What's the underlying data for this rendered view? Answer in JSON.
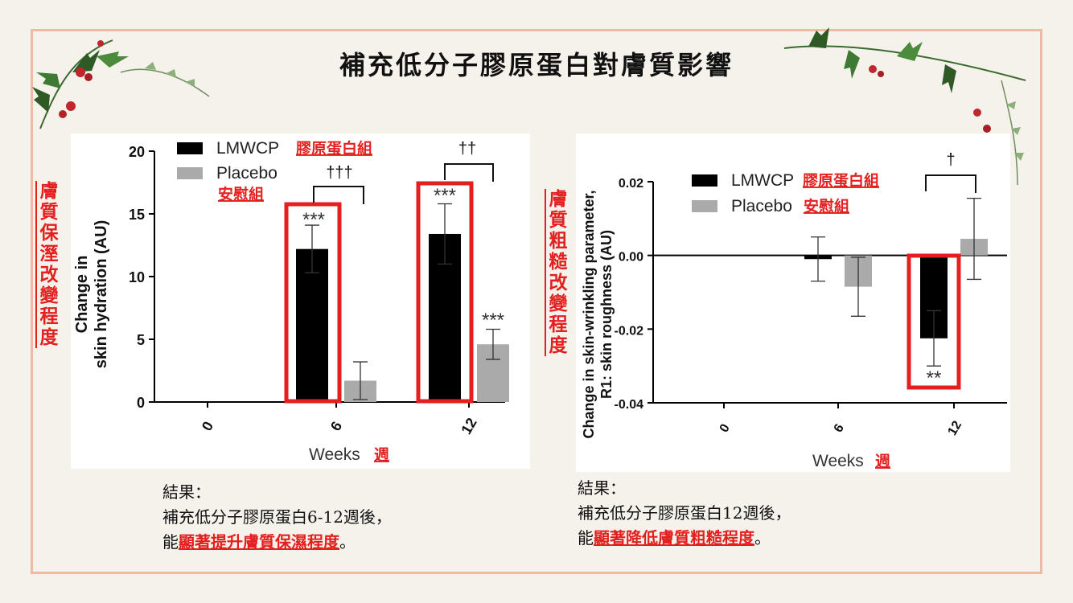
{
  "slide": {
    "title": "補充低分子膠原蛋白對膚質影響"
  },
  "colors": {
    "accent_red": "#e41f1f",
    "lmwcp": "#000000",
    "placebo": "#aaaaaa",
    "frame": "#f2b9a2"
  },
  "left_side_label": [
    "膚",
    "質",
    "保",
    "溼",
    "改",
    "變",
    "程",
    "度"
  ],
  "right_side_label": [
    "膚",
    "質",
    "粗",
    "糙",
    "改",
    "變",
    "程",
    "度"
  ],
  "chart_data": [
    {
      "type": "bar",
      "title": "",
      "ylabel_lines": [
        "Change in",
        "skin hydration (AU)"
      ],
      "xlabel": "Weeks",
      "xlabel_zh": "週",
      "categories": [
        "0",
        "6",
        "12"
      ],
      "ylim": [
        0,
        20
      ],
      "yticks": [
        "0",
        "5",
        "10",
        "15",
        "20"
      ],
      "series": [
        {
          "name": "LMWCP",
          "name_zh": "膠原蛋白組",
          "values": [
            null,
            12.2,
            13.4
          ],
          "errors": [
            null,
            1.9,
            2.4
          ]
        },
        {
          "name": "Placebo",
          "name_zh": "安慰組",
          "values": [
            null,
            1.7,
            4.6
          ],
          "errors": [
            null,
            1.5,
            1.2
          ]
        }
      ],
      "annotations": {
        "stars": [
          "***",
          "***",
          "***"
        ],
        "daggers": [
          "†††",
          "††"
        ]
      }
    },
    {
      "type": "bar",
      "title": "",
      "ylabel_lines": [
        "Change in skin-wrinkling parameter,",
        "R1: skin  roughness (AU)"
      ],
      "xlabel": "Weeks",
      "xlabel_zh": "週",
      "categories": [
        "0",
        "6",
        "12"
      ],
      "ylim": [
        -0.04,
        0.02
      ],
      "yticks": [
        "-0.04",
        "-0.02",
        "0.00",
        "0.02"
      ],
      "series": [
        {
          "name": "LMWCP",
          "name_zh": "膠原蛋白組",
          "values": [
            null,
            -0.001,
            -0.0225
          ],
          "errors": [
            null,
            0.006,
            0.0075
          ]
        },
        {
          "name": "Placebo",
          "name_zh": "安慰組",
          "values": [
            null,
            -0.0085,
            0.0045
          ],
          "errors": [
            null,
            0.008,
            0.011
          ]
        }
      ],
      "annotations": {
        "stars": [
          "**"
        ],
        "daggers": [
          "†"
        ]
      }
    }
  ],
  "results": [
    {
      "heading": "結果：",
      "line1": "補充低分子膠原蛋白6-12週後，",
      "line2_prefix": "能",
      "line2_em": "顯著提升膚質保濕程度",
      "line2_suffix": "。"
    },
    {
      "heading": "結果：",
      "line1": "補充低分子膠原蛋白12週後，",
      "line2_prefix": "能",
      "line2_em": "顯著降低膚質粗糙程度",
      "line2_suffix": "。"
    }
  ]
}
